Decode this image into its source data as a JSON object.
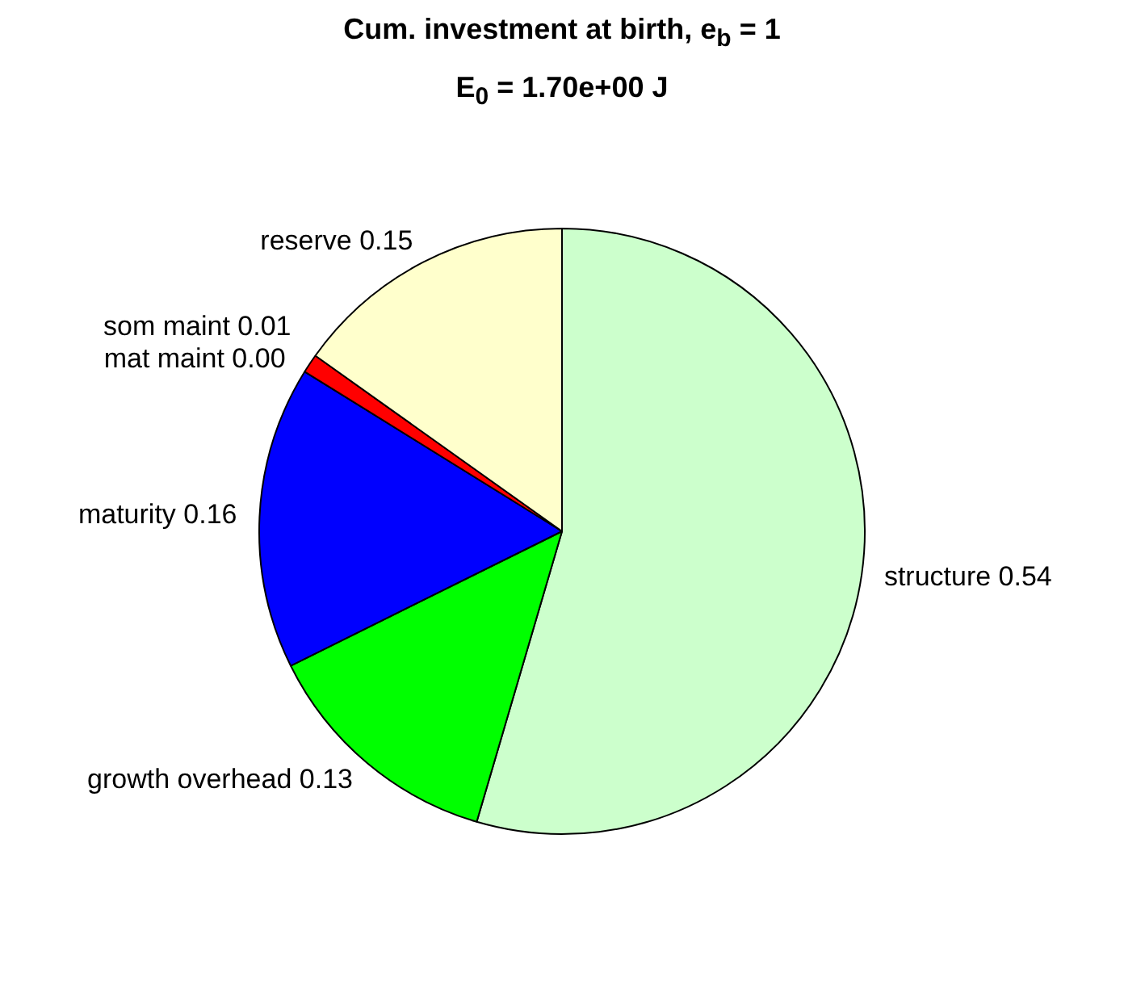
{
  "chart_data": {
    "type": "pie",
    "title": "Cum. investment at birth, e$_{b}$ = 1",
    "subtitle": "E$_{0}$ = 1.70e+00 J",
    "categories": [
      "structure",
      "growth overhead",
      "maturity",
      "mat maint",
      "som maint",
      "reserve"
    ],
    "values": [
      0.54,
      0.13,
      0.16,
      0.0,
      0.01,
      0.15
    ],
    "value_labels": [
      "0.54",
      "0.13",
      "0.16",
      "0.00",
      "0.01",
      "0.15"
    ],
    "colors": [
      "#ccffcc",
      "#00ff00",
      "#0000ff",
      "#8000ff",
      "#ff0000",
      "#ffffcc"
    ],
    "legend": false
  }
}
